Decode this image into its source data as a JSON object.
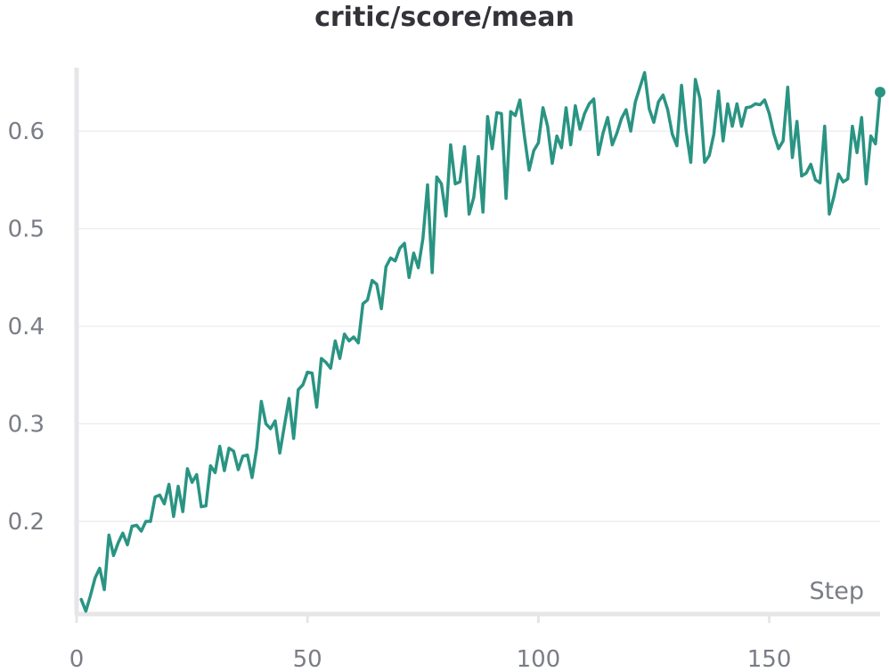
{
  "chart_data": {
    "type": "line",
    "title": "critic/score/mean",
    "xlabel": "Step",
    "ylabel": "",
    "xlim": [
      0,
      174
    ],
    "ylim": [
      0.105,
      0.665
    ],
    "xticks": [
      0,
      50,
      100,
      150
    ],
    "yticks": [
      0.2,
      0.3,
      0.4,
      0.5,
      0.6
    ],
    "xtick_labels": [
      "0",
      "50",
      "100",
      "150"
    ],
    "ytick_labels": [
      "0.2",
      "0.3",
      "0.4",
      "0.5",
      "0.6"
    ],
    "grid": true,
    "end_marker": true,
    "color": "#2a9483",
    "series": [
      {
        "x": [
          1,
          2,
          3,
          4,
          5,
          6,
          7,
          8,
          9,
          10,
          11,
          12,
          13,
          14,
          15,
          16,
          17,
          18,
          19,
          20,
          21,
          22,
          23,
          24,
          25,
          26,
          27,
          28,
          29,
          30,
          31,
          32,
          33,
          34,
          35,
          36,
          37,
          38,
          39,
          40,
          41,
          42,
          43,
          44,
          45,
          46,
          47,
          48,
          49,
          50,
          51,
          52,
          53,
          54,
          55,
          56,
          57,
          58,
          59,
          60,
          61,
          62,
          63,
          64,
          65,
          66,
          67,
          68,
          69,
          70,
          71,
          72,
          73,
          74,
          75,
          76,
          77,
          78,
          79,
          80,
          81,
          82,
          83,
          84,
          85,
          86,
          87,
          88,
          89,
          90,
          91,
          92,
          93,
          94,
          95,
          96,
          97,
          98,
          99,
          100,
          101,
          102,
          103,
          104,
          105,
          106,
          107,
          108,
          109,
          110,
          111,
          112,
          113,
          114,
          115,
          116,
          117,
          118,
          119,
          120,
          121,
          122,
          123,
          124,
          125,
          126,
          127,
          128,
          129,
          130,
          131,
          132,
          133,
          134,
          135,
          136,
          137,
          138,
          139,
          140,
          141,
          142,
          143,
          144,
          145,
          146,
          147,
          148,
          149,
          150,
          151,
          152,
          153,
          154,
          155,
          156,
          157,
          158,
          159,
          160,
          161,
          162,
          163,
          164,
          165,
          166,
          167,
          168,
          169,
          170,
          171,
          172,
          173,
          174
        ],
        "values": [
          0.12,
          0.108,
          0.124,
          0.142,
          0.152,
          0.13,
          0.186,
          0.165,
          0.178,
          0.188,
          0.176,
          0.195,
          0.196,
          0.19,
          0.2,
          0.2,
          0.225,
          0.227,
          0.218,
          0.238,
          0.205,
          0.236,
          0.21,
          0.254,
          0.24,
          0.248,
          0.215,
          0.216,
          0.257,
          0.25,
          0.277,
          0.252,
          0.275,
          0.272,
          0.253,
          0.267,
          0.268,
          0.245,
          0.275,
          0.323,
          0.3,
          0.295,
          0.303,
          0.27,
          0.298,
          0.326,
          0.285,
          0.335,
          0.34,
          0.353,
          0.352,
          0.317,
          0.367,
          0.363,
          0.357,
          0.385,
          0.367,
          0.392,
          0.385,
          0.389,
          0.383,
          0.423,
          0.427,
          0.447,
          0.443,
          0.418,
          0.461,
          0.47,
          0.467,
          0.48,
          0.485,
          0.45,
          0.475,
          0.46,
          0.49,
          0.545,
          0.455,
          0.553,
          0.546,
          0.513,
          0.586,
          0.546,
          0.548,
          0.584,
          0.515,
          0.532,
          0.574,
          0.517,
          0.615,
          0.582,
          0.619,
          0.618,
          0.531,
          0.62,
          0.616,
          0.632,
          0.594,
          0.56,
          0.58,
          0.588,
          0.624,
          0.605,
          0.567,
          0.595,
          0.583,
          0.624,
          0.586,
          0.626,
          0.602,
          0.618,
          0.628,
          0.633,
          0.576,
          0.598,
          0.614,
          0.586,
          0.598,
          0.613,
          0.622,
          0.6,
          0.63,
          0.645,
          0.66,
          0.623,
          0.609,
          0.63,
          0.637,
          0.622,
          0.597,
          0.585,
          0.647,
          0.6,
          0.568,
          0.653,
          0.633,
          0.568,
          0.575,
          0.597,
          0.641,
          0.59,
          0.628,
          0.605,
          0.628,
          0.605,
          0.624,
          0.625,
          0.628,
          0.627,
          0.632,
          0.618,
          0.597,
          0.582,
          0.59,
          0.645,
          0.573,
          0.61,
          0.554,
          0.557,
          0.566,
          0.55,
          0.547,
          0.605,
          0.515,
          0.533,
          0.556,
          0.548,
          0.551,
          0.605,
          0.578,
          0.614,
          0.546,
          0.595,
          0.587,
          0.64
        ]
      }
    ]
  }
}
